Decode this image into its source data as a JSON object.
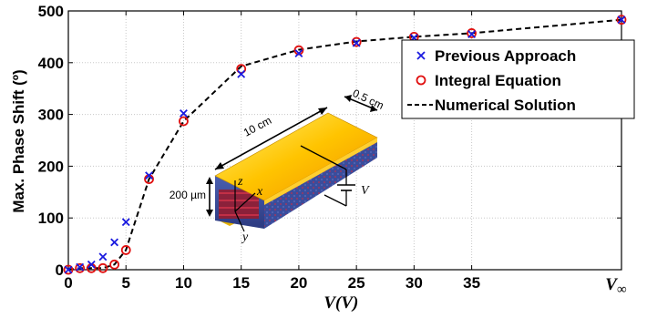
{
  "chart_data": {
    "type": "scatter",
    "title": "",
    "ylabel": "Max. Phase Shift (º)",
    "xlabel": "V",
    "xlabel_unit": "(V)",
    "ylim": [
      0,
      500
    ],
    "xlim": [
      0,
      48
    ],
    "x_ticks": [
      0,
      5,
      10,
      15,
      20,
      25,
      30,
      35
    ],
    "x_tick_labels": [
      "0",
      "5",
      "10",
      "15",
      "20",
      "25",
      "30",
      "35"
    ],
    "x_inf_position": 48,
    "x_inf_label_base": "V",
    "x_inf_label_sub": "∞",
    "y_ticks": [
      0,
      100,
      200,
      300,
      400,
      500
    ],
    "y_tick_labels": [
      "0",
      "100",
      "200",
      "300",
      "400",
      "500"
    ],
    "grid": true,
    "legend_position": "top-right",
    "series": [
      {
        "name": "Previous Approach",
        "marker": "x",
        "color": "#1a1adf",
        "x": [
          0,
          1,
          2,
          3,
          4,
          5,
          7,
          10,
          15,
          20,
          25,
          30,
          35,
          48
        ],
        "y": [
          0,
          5,
          10,
          25,
          53,
          92,
          182,
          302,
          378,
          418,
          438,
          448,
          455,
          483
        ]
      },
      {
        "name": "Integral Equation",
        "marker": "o",
        "color": "#e01010",
        "x": [
          0,
          1,
          2,
          3,
          4,
          5,
          7,
          10,
          15,
          20,
          25,
          30,
          35,
          48
        ],
        "y": [
          0,
          3,
          3,
          3,
          10,
          38,
          175,
          287,
          388,
          424,
          440,
          450,
          457,
          483
        ]
      },
      {
        "name": "Numerical Solution",
        "marker": "dashed-line",
        "color": "#000000",
        "x": [
          0,
          1,
          2,
          3,
          4,
          5,
          7,
          10,
          15,
          20,
          25,
          30,
          35,
          48
        ],
        "y": [
          0,
          3,
          3,
          3,
          10,
          38,
          175,
          287,
          393,
          425,
          441,
          450,
          457,
          483
        ]
      }
    ],
    "inset": {
      "length_label": "10 cm",
      "width_label": "0.5 cm",
      "thickness_label": "200 µm",
      "axis_x": "x",
      "axis_y": "y",
      "axis_z": "z",
      "voltage_label": "V"
    }
  }
}
